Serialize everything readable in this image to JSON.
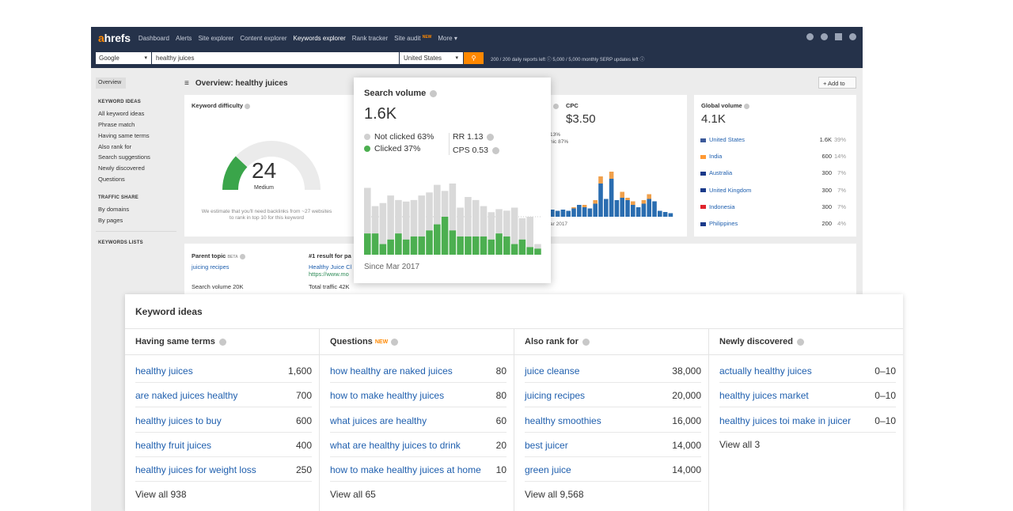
{
  "nav": {
    "logo_a": "a",
    "logo_rest": "hrefs",
    "items": [
      "Dashboard",
      "Alerts",
      "Site explorer",
      "Content explorer",
      "Keywords explorer",
      "Rank tracker",
      "Site audit",
      "More ▾"
    ],
    "site_audit_badge": "NEW"
  },
  "search": {
    "engine": "Google",
    "keyword": "healthy juices",
    "country": "United States",
    "limits": "200 / 200 daily reports left  ⓘ   5,000 / 5,000 monthly SERP updates left  ⓘ"
  },
  "sidebar": {
    "overview": "Overview",
    "keyword_ideas_head": "KEYWORD IDEAS",
    "keyword_ideas": [
      "All keyword ideas",
      "Phrase match",
      "Having same terms",
      "Also rank for",
      "Search suggestions",
      "Newly discovered",
      "Questions"
    ],
    "traffic_share_head": "TRAFFIC SHARE",
    "traffic_share": [
      "By domains",
      "By pages"
    ],
    "keywords_lists_head": "KEYWORDS LISTS"
  },
  "overview": {
    "title": "Overview: healthy juices",
    "add_to": "+ Add to"
  },
  "keyword_difficulty": {
    "title": "Keyword difficulty",
    "value": "24",
    "label": "Medium",
    "gauge_fraction": 0.24,
    "note": "We estimate that you'll need backlinks from ~27 websites to rank in top 10 for this keyword"
  },
  "cpc": {
    "title": "CPC",
    "value": "$3.50",
    "paid_fragment": "13%",
    "organic_fragment": "nic 87%",
    "since_fragment": "ar 2017"
  },
  "global_volume": {
    "title": "Global volume",
    "value": "4.1K",
    "countries": [
      {
        "name": "United States",
        "volume": "1.6K",
        "pct": "39%",
        "flag": "#3c5a9a"
      },
      {
        "name": "India",
        "volume": "600",
        "pct": "14%",
        "flag": "#ff9933"
      },
      {
        "name": "Australia",
        "volume": "300",
        "pct": "7%",
        "flag": "#1a3a8a"
      },
      {
        "name": "United Kingdom",
        "volume": "300",
        "pct": "7%",
        "flag": "#1a3a8a"
      },
      {
        "name": "Indonesia",
        "volume": "300",
        "pct": "7%",
        "flag": "#e0242c"
      },
      {
        "name": "Philippines",
        "volume": "200",
        "pct": "4%",
        "flag": "#1a3a8a"
      }
    ]
  },
  "parent_topic": {
    "title": "Parent topic",
    "beta": "BETA",
    "topic": "juicing recipes",
    "volume": "Search volume 20K"
  },
  "first_result": {
    "title": "#1 result for pa",
    "link_title": "Healthy Juice Cl",
    "url": "https://www.mo",
    "traffic": "Total traffic 42K"
  },
  "search_volume": {
    "title": "Search volume",
    "value": "1.6K",
    "not_clicked": "Not clicked 63%",
    "clicked": "Clicked 37%",
    "rr": "RR 1.13",
    "cps": "CPS 0.53",
    "since": "Since Mar 2017",
    "colors": {
      "clicked": "#4caf50",
      "not_clicked": "#d9d9d9"
    }
  },
  "chart_data": {
    "type": "bar",
    "title": "Search volume",
    "series": [
      {
        "name": "Clicked",
        "values": [
          28,
          28,
          14,
          20,
          28,
          20,
          24,
          24,
          32,
          40,
          50,
          32,
          24,
          24,
          24,
          24,
          20,
          28,
          24,
          14,
          20,
          10,
          8
        ]
      },
      {
        "name": "Not clicked",
        "values": [
          60,
          36,
          54,
          58,
          44,
          50,
          48,
          54,
          50,
          52,
          34,
          70,
          38,
          52,
          48,
          40,
          36,
          32,
          34,
          48,
          28,
          40,
          6
        ]
      }
    ],
    "xlabel": "",
    "ylabel": ""
  },
  "cpc_chart": {
    "organic": [
      12,
      10,
      12,
      10,
      14,
      20,
      16,
      14,
      22,
      56,
      30,
      64,
      28,
      32,
      28,
      20,
      16,
      22,
      30,
      26,
      10,
      8,
      6
    ],
    "paid": [
      0,
      0,
      0,
      0,
      2,
      0,
      4,
      0,
      6,
      12,
      0,
      12,
      0,
      10,
      4,
      6,
      0,
      6,
      8,
      0,
      0,
      0,
      0
    ],
    "colors": {
      "organic": "#2a6db0",
      "paid": "#f0a04b"
    }
  },
  "keyword_ideas": {
    "title": "Keyword ideas",
    "columns": [
      {
        "head": "Having same terms",
        "badge": "",
        "rows": [
          {
            "kw": "healthy juices",
            "n": "1,600"
          },
          {
            "kw": "are naked juices healthy",
            "n": "700"
          },
          {
            "kw": "healthy juices to buy",
            "n": "600"
          },
          {
            "kw": "healthy fruit juices",
            "n": "400"
          },
          {
            "kw": "healthy juices for weight loss",
            "n": "250"
          }
        ],
        "view_all": "View all 938"
      },
      {
        "head": "Questions",
        "badge": "NEW",
        "rows": [
          {
            "kw": "how healthy are naked juices",
            "n": "80"
          },
          {
            "kw": "how to make healthy juices",
            "n": "80"
          },
          {
            "kw": "what juices are healthy",
            "n": "60"
          },
          {
            "kw": "what are healthy juices to drink",
            "n": "20"
          },
          {
            "kw": "how to make healthy juices at home",
            "n": "10"
          }
        ],
        "view_all": "View all 65"
      },
      {
        "head": "Also rank for",
        "badge": "",
        "rows": [
          {
            "kw": "juice cleanse",
            "n": "38,000"
          },
          {
            "kw": "juicing recipes",
            "n": "20,000"
          },
          {
            "kw": "healthy smoothies",
            "n": "16,000"
          },
          {
            "kw": "best juicer",
            "n": "14,000"
          },
          {
            "kw": "green juice",
            "n": "14,000"
          }
        ],
        "view_all": "View all 9,568"
      },
      {
        "head": "Newly discovered",
        "badge": "",
        "rows": [
          {
            "kw": "actually healthy juices",
            "n": "0–10"
          },
          {
            "kw": "healthy juices market",
            "n": "0–10"
          },
          {
            "kw": "healthy juices toi make in juicer",
            "n": "0–10"
          }
        ],
        "view_all": "View all 3"
      }
    ]
  }
}
